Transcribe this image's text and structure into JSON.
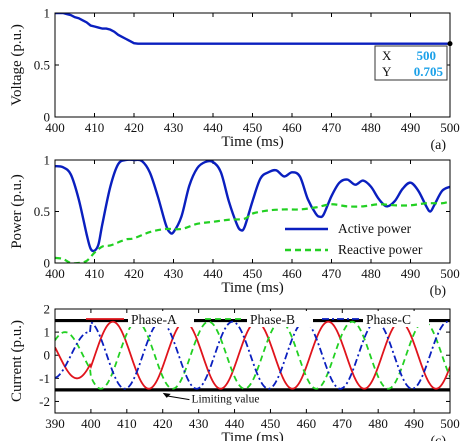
{
  "chart_data": [
    {
      "type": "line",
      "panel_label": "(a)",
      "xlabel": "Time (ms)",
      "ylabel": "Voltage (p.u.)",
      "xlim": [
        400,
        500
      ],
      "ylim": [
        0,
        1
      ],
      "x_ticks": [
        400,
        410,
        420,
        430,
        440,
        450,
        460,
        470,
        480,
        490,
        500
      ],
      "y_ticks": [
        0,
        0.5,
        1
      ],
      "series": [
        {
          "color": "#0a1fbf",
          "style": "solid",
          "points": [
            [
              400,
              1.0
            ],
            [
              402,
              1.0
            ],
            [
              403,
              0.99
            ],
            [
              404,
              0.98
            ],
            [
              405,
              0.96
            ],
            [
              406,
              0.95
            ],
            [
              407,
              0.93
            ],
            [
              408,
              0.91
            ],
            [
              409,
              0.88
            ],
            [
              410,
              0.87
            ],
            [
              411,
              0.86
            ],
            [
              412,
              0.85
            ],
            [
              413,
              0.85
            ],
            [
              414,
              0.84
            ],
            [
              415,
              0.82
            ],
            [
              416,
              0.79
            ],
            [
              417,
              0.77
            ],
            [
              418,
              0.75
            ],
            [
              419,
              0.73
            ],
            [
              420,
              0.71
            ],
            [
              421,
              0.705
            ],
            [
              425,
              0.705
            ],
            [
              440,
              0.705
            ],
            [
              460,
              0.705
            ],
            [
              480,
              0.705
            ],
            [
              500,
              0.705
            ]
          ]
        }
      ],
      "datatip": {
        "x_label": "X",
        "x_value": "500",
        "y_label": "Y",
        "y_value": "0.705"
      }
    },
    {
      "type": "line",
      "panel_label": "(b)",
      "xlabel": "Time (ms)",
      "ylabel": "Power (p.u.)",
      "xlim": [
        400,
        500
      ],
      "ylim": [
        0,
        1
      ],
      "x_ticks": [
        400,
        410,
        420,
        430,
        440,
        450,
        460,
        470,
        480,
        490,
        500
      ],
      "y_ticks": [
        0,
        0.5,
        1
      ],
      "legend_position": "bottom-right",
      "series": [
        {
          "name": "Active power",
          "color": "#0a1fbf",
          "style": "solid",
          "points": [
            [
              400,
              0.94
            ],
            [
              402,
              0.93
            ],
            [
              404,
              0.86
            ],
            [
              406,
              0.62
            ],
            [
              408,
              0.28
            ],
            [
              409,
              0.14
            ],
            [
              410,
              0.12
            ],
            [
              411,
              0.18
            ],
            [
              412,
              0.38
            ],
            [
              414,
              0.74
            ],
            [
              416,
              0.96
            ],
            [
              418,
              1.0
            ],
            [
              420,
              1.0
            ],
            [
              422,
              0.99
            ],
            [
              424,
              0.88
            ],
            [
              426,
              0.65
            ],
            [
              428,
              0.38
            ],
            [
              429,
              0.3
            ],
            [
              430,
              0.3
            ],
            [
              432,
              0.45
            ],
            [
              434,
              0.75
            ],
            [
              436,
              0.92
            ],
            [
              438,
              0.98
            ],
            [
              440,
              0.98
            ],
            [
              442,
              0.88
            ],
            [
              444,
              0.6
            ],
            [
              446,
              0.38
            ],
            [
              447,
              0.32
            ],
            [
              448,
              0.35
            ],
            [
              450,
              0.6
            ],
            [
              452,
              0.82
            ],
            [
              454,
              0.88
            ],
            [
              456,
              0.9
            ],
            [
              458,
              0.84
            ],
            [
              460,
              0.88
            ],
            [
              462,
              0.84
            ],
            [
              464,
              0.62
            ],
            [
              466,
              0.48
            ],
            [
              467,
              0.45
            ],
            [
              468,
              0.47
            ],
            [
              470,
              0.65
            ],
            [
              472,
              0.78
            ],
            [
              474,
              0.81
            ],
            [
              476,
              0.76
            ],
            [
              478,
              0.8
            ],
            [
              480,
              0.74
            ],
            [
              482,
              0.62
            ],
            [
              484,
              0.55
            ],
            [
              486,
              0.6
            ],
            [
              488,
              0.72
            ],
            [
              490,
              0.78
            ],
            [
              492,
              0.7
            ],
            [
              494,
              0.55
            ],
            [
              495,
              0.5
            ],
            [
              496,
              0.56
            ],
            [
              498,
              0.7
            ],
            [
              500,
              0.74
            ]
          ]
        },
        {
          "name": "Reactive power",
          "color": "#22d022",
          "style": "dashed",
          "points": [
            [
              400,
              0.05
            ],
            [
              402,
              0.04
            ],
            [
              404,
              0.0
            ],
            [
              406,
              0.0
            ],
            [
              408,
              0.02
            ],
            [
              410,
              0.1
            ],
            [
              412,
              0.16
            ],
            [
              414,
              0.17
            ],
            [
              416,
              0.2
            ],
            [
              418,
              0.23
            ],
            [
              420,
              0.24
            ],
            [
              424,
              0.3
            ],
            [
              428,
              0.33
            ],
            [
              432,
              0.33
            ],
            [
              436,
              0.38
            ],
            [
              440,
              0.4
            ],
            [
              444,
              0.42
            ],
            [
              448,
              0.43
            ],
            [
              450,
              0.48
            ],
            [
              454,
              0.51
            ],
            [
              458,
              0.52
            ],
            [
              462,
              0.52
            ],
            [
              466,
              0.54
            ],
            [
              470,
              0.57
            ],
            [
              474,
              0.55
            ],
            [
              478,
              0.55
            ],
            [
              482,
              0.57
            ],
            [
              486,
              0.56
            ],
            [
              490,
              0.56
            ],
            [
              494,
              0.58
            ],
            [
              498,
              0.58
            ],
            [
              500,
              0.6
            ]
          ]
        }
      ]
    },
    {
      "type": "line",
      "panel_label": "(c)",
      "xlabel": "Time (ms)",
      "ylabel": "Current (p.u.)",
      "xlim": [
        390,
        500
      ],
      "ylim": [
        -2.5,
        2
      ],
      "x_ticks": [
        390,
        400,
        410,
        420,
        430,
        440,
        450,
        460,
        470,
        480,
        490,
        500
      ],
      "y_ticks": [
        -2,
        -1,
        0,
        1,
        2
      ],
      "legend_position": "top",
      "waveform": {
        "amplitude": 1.45,
        "period_ms": 20,
        "phase_a_deg": -200,
        "phase_shift_deg": 120,
        "prefault_end_ms": 400,
        "prefault_amplitude": 1.0
      },
      "series": [
        {
          "name": "Phase-A",
          "color": "#e0141c",
          "style": "solid"
        },
        {
          "name": "Phase-B",
          "color": "#22d022",
          "style": "dashed"
        },
        {
          "name": "Phase-C",
          "color": "#0a1fbf",
          "style": "dashdot"
        }
      ],
      "limits": [
        1.5,
        -1.5
      ],
      "annotation": "Limiting value",
      "annotation_x": 428,
      "annotation_arrow_to": [
        420,
        -1.5
      ]
    }
  ]
}
